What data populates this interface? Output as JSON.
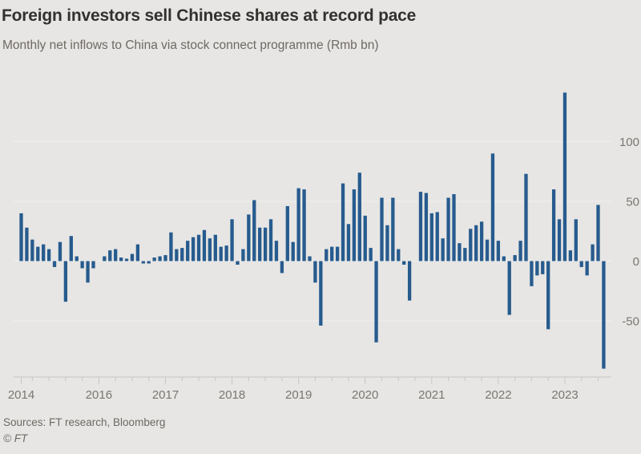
{
  "header": {
    "title": "Foreign investors sell Chinese shares at record pace",
    "subtitle": "Monthly net inflows to China via stock connect programme (Rmb bn)"
  },
  "footer": {
    "sources": "Sources: FT research, Bloomberg",
    "copyright": "© FT"
  },
  "chart_data": {
    "type": "bar",
    "title": "Foreign investors sell Chinese shares at record pace",
    "subtitle": "Monthly net inflows to China via stock connect programme (Rmb bn)",
    "unit": "Rmb bn",
    "bar_color": "#275b8e",
    "background_color": "#e7e6e4",
    "grid_color": "#f1f0ee",
    "axis_color": "#c8c6c2",
    "label_color": "#7b7671",
    "ylim": [
      -100,
      150
    ],
    "y_ticks": [
      100,
      50,
      0,
      -50
    ],
    "y_axis_side": "right",
    "grid": "faint horizontal at labeled ticks",
    "legend": "none",
    "x_tick_years": [
      {
        "label": "2014",
        "month_index": 0
      },
      {
        "label": "2016",
        "month_index": 14
      },
      {
        "label": "2017",
        "month_index": 26
      },
      {
        "label": "2018",
        "month_index": 38
      },
      {
        "label": "2019",
        "month_index": 50
      },
      {
        "label": "2020",
        "month_index": 62
      },
      {
        "label": "2021",
        "month_index": 74
      },
      {
        "label": "2022",
        "month_index": 86
      },
      {
        "label": "2023",
        "month_index": 98
      }
    ],
    "months": [
      "2014-11",
      "2014-12",
      "2015-01",
      "2015-02",
      "2015-03",
      "2015-04",
      "2015-05",
      "2015-06",
      "2015-07",
      "2015-08",
      "2015-09",
      "2015-10",
      "2015-11",
      "2015-12",
      "2016-01",
      "2016-02",
      "2016-03",
      "2016-04",
      "2016-05",
      "2016-06",
      "2016-07",
      "2016-08",
      "2016-09",
      "2016-10",
      "2016-11",
      "2016-12",
      "2017-01",
      "2017-02",
      "2017-03",
      "2017-04",
      "2017-05",
      "2017-06",
      "2017-07",
      "2017-08",
      "2017-09",
      "2017-10",
      "2017-11",
      "2017-12",
      "2018-01",
      "2018-02",
      "2018-03",
      "2018-04",
      "2018-05",
      "2018-06",
      "2018-07",
      "2018-08",
      "2018-09",
      "2018-10",
      "2018-11",
      "2018-12",
      "2019-01",
      "2019-02",
      "2019-03",
      "2019-04",
      "2019-05",
      "2019-06",
      "2019-07",
      "2019-08",
      "2019-09",
      "2019-10",
      "2019-11",
      "2019-12",
      "2020-01",
      "2020-02",
      "2020-03",
      "2020-04",
      "2020-05",
      "2020-06",
      "2020-07",
      "2020-08",
      "2020-09",
      "2020-10",
      "2020-11",
      "2020-12",
      "2021-01",
      "2021-02",
      "2021-03",
      "2021-04",
      "2021-05",
      "2021-06",
      "2021-07",
      "2021-08",
      "2021-09",
      "2021-10",
      "2021-11",
      "2021-12",
      "2022-01",
      "2022-02",
      "2022-03",
      "2022-04",
      "2022-05",
      "2022-06",
      "2022-07",
      "2022-08",
      "2022-09",
      "2022-10",
      "2022-11",
      "2022-12",
      "2023-01",
      "2023-02",
      "2023-03",
      "2023-04",
      "2023-05",
      "2023-06",
      "2023-07",
      "2023-08"
    ],
    "values": [
      40,
      28,
      18,
      12,
      14,
      10,
      -5,
      16,
      -34,
      21,
      4,
      -6,
      -18,
      -6,
      0,
      4,
      9,
      10,
      3,
      2,
      6,
      14,
      -2,
      -2,
      3,
      4,
      5,
      24,
      10,
      11,
      17,
      20,
      22,
      26,
      19,
      22,
      12,
      13,
      35,
      -3,
      10,
      39,
      51,
      28,
      28,
      35,
      17,
      -10,
      46,
      16,
      61,
      60,
      4,
      -18,
      -54,
      10,
      12,
      12,
      65,
      31,
      60,
      74,
      38,
      11,
      -68,
      53,
      30,
      53,
      10,
      -3,
      -33,
      0,
      58,
      57,
      40,
      41,
      19,
      53,
      56,
      15,
      11,
      27,
      30,
      33,
      18,
      90,
      17,
      4,
      -45,
      5,
      17,
      73,
      -21,
      -12,
      -11,
      -57,
      60,
      35,
      141,
      9,
      35,
      -5,
      -12,
      14,
      47,
      -90
    ]
  }
}
